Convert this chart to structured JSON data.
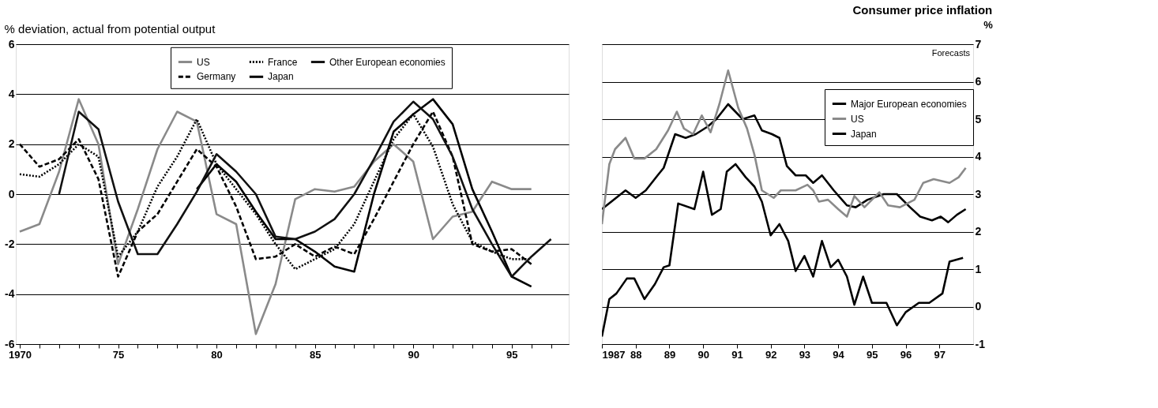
{
  "chart_data": [
    {
      "type": "line",
      "subtitle": "% deviation, actual from potential output",
      "legend": "top",
      "grid": "y",
      "xlim": [
        1969.8,
        1997.9
      ],
      "ylim": [
        -6,
        6
      ],
      "yticks": [
        6,
        4,
        2,
        0,
        -2,
        -4,
        -6
      ],
      "xticks": [
        {
          "value": 1970,
          "label": "1970"
        },
        {
          "value": 1971,
          "label": null
        },
        {
          "value": 1972,
          "label": null
        },
        {
          "value": 1973,
          "label": null
        },
        {
          "value": 1974,
          "label": null
        },
        {
          "value": 1975,
          "label": "75"
        },
        {
          "value": 1976,
          "label": null
        },
        {
          "value": 1977,
          "label": null
        },
        {
          "value": 1978,
          "label": null
        },
        {
          "value": 1979,
          "label": null
        },
        {
          "value": 1980,
          "label": "80"
        },
        {
          "value": 1981,
          "label": null
        },
        {
          "value": 1982,
          "label": null
        },
        {
          "value": 1983,
          "label": null
        },
        {
          "value": 1984,
          "label": null
        },
        {
          "value": 1985,
          "label": "85"
        },
        {
          "value": 1986,
          "label": null
        },
        {
          "value": 1987,
          "label": null
        },
        {
          "value": 1988,
          "label": null
        },
        {
          "value": 1989,
          "label": null
        },
        {
          "value": 1990,
          "label": "90"
        },
        {
          "value": 1991,
          "label": null
        },
        {
          "value": 1992,
          "label": null
        },
        {
          "value": 1993,
          "label": null
        },
        {
          "value": 1994,
          "label": null
        },
        {
          "value": 1995,
          "label": "95"
        },
        {
          "value": 1996,
          "label": null
        },
        {
          "value": 1997,
          "label": null
        }
      ],
      "series": [
        {
          "name": "US",
          "color": "#8a8a8a",
          "line_style": "solid",
          "x": [
            1970,
            1971,
            1972,
            1973,
            1974,
            1975,
            1976,
            1977,
            1978,
            1979,
            1980,
            1981,
            1982,
            1983,
            1984,
            1985,
            1986,
            1987,
            1988,
            1989,
            1990,
            1991,
            1992,
            1993,
            1994,
            1995,
            1996
          ],
          "values": [
            -1.5,
            -1.2,
            0.9,
            3.8,
            2.0,
            -2.8,
            -0.6,
            1.8,
            3.3,
            2.9,
            -0.8,
            -1.2,
            -5.6,
            -3.6,
            -0.2,
            0.2,
            0.1,
            0.3,
            1.3,
            2.0,
            1.3,
            -1.8,
            -0.9,
            -0.7,
            0.5,
            0.2,
            0.2
          ]
        },
        {
          "name": "Germany",
          "color": "#000000",
          "line_style": "dashed",
          "x": [
            1970,
            1971,
            1972,
            1973,
            1974,
            1975,
            1976,
            1977,
            1978,
            1979,
            1980,
            1981,
            1982,
            1983,
            1984,
            1985,
            1986,
            1987,
            1988,
            1989,
            1990,
            1991,
            1992,
            1993,
            1994,
            1995,
            1996
          ],
          "values": [
            2.0,
            1.1,
            1.4,
            2.2,
            0.6,
            -3.3,
            -1.5,
            -0.8,
            0.5,
            1.8,
            1.1,
            -0.5,
            -2.6,
            -2.5,
            -2.0,
            -2.5,
            -2.1,
            -2.4,
            -1.0,
            0.5,
            2.0,
            3.3,
            1.5,
            -2.0,
            -2.3,
            -2.2,
            -2.8
          ]
        },
        {
          "name": "France",
          "color": "#000000",
          "line_style": "dotted",
          "x": [
            1970,
            1971,
            1972,
            1973,
            1974,
            1975,
            1976,
            1977,
            1978,
            1979,
            1980,
            1981,
            1982,
            1983,
            1984,
            1985,
            1986,
            1987,
            1988,
            1989,
            1990,
            1991,
            1992,
            1993,
            1994,
            1995,
            1996
          ],
          "values": [
            0.8,
            0.7,
            1.2,
            2.0,
            1.5,
            -2.5,
            -1.5,
            0.3,
            1.5,
            3.0,
            1.2,
            0.2,
            -0.8,
            -2.0,
            -3.0,
            -2.6,
            -2.2,
            -1.2,
            0.5,
            2.2,
            3.2,
            1.9,
            -0.4,
            -1.9,
            -2.3,
            -2.6,
            -2.6
          ]
        },
        {
          "name": "Japan",
          "color": "#000000",
          "line_style": "solid",
          "x": [
            1979,
            1980,
            1981,
            1982,
            1983,
            1984,
            1985,
            1986,
            1987,
            1988,
            1989,
            1990,
            1991,
            1992,
            1993,
            1994,
            1995,
            1996
          ],
          "values": [
            0.2,
            1.2,
            0.5,
            -0.7,
            -1.8,
            -1.8,
            -2.3,
            -2.9,
            -3.1,
            0.0,
            2.5,
            3.2,
            3.8,
            2.8,
            0.2,
            -1.5,
            -3.3,
            -3.7
          ]
        },
        {
          "name": "Other European economies",
          "color": "#111111",
          "line_style": "solid",
          "x": [
            1972,
            1973,
            1974,
            1975,
            1976,
            1977,
            1978,
            1979,
            1980,
            1981,
            1982,
            1983,
            1984,
            1985,
            1986,
            1987,
            1988,
            1989,
            1990,
            1991,
            1992,
            1993,
            1994,
            1995,
            1996,
            1997
          ],
          "values": [
            0.0,
            3.3,
            2.6,
            -0.3,
            -2.4,
            -2.4,
            -1.2,
            0.1,
            1.6,
            0.9,
            0.0,
            -1.7,
            -1.8,
            -1.5,
            -1.0,
            0.0,
            1.4,
            2.9,
            3.7,
            3.0,
            1.5,
            -0.6,
            -2.0,
            -3.3,
            -2.5,
            -1.8
          ]
        }
      ]
    },
    {
      "type": "line",
      "title": "Consumer price inflation",
      "ylabel": "%",
      "legend": "top right",
      "grid": "y",
      "xlim": [
        1987,
        1998
      ],
      "ylim": [
        -1,
        7
      ],
      "yticks": [
        7,
        6,
        5,
        4,
        3,
        2,
        1,
        0,
        -1
      ],
      "xticks": [
        {
          "value": 1987,
          "label": "1987"
        },
        {
          "value": 1988,
          "label": "88"
        },
        {
          "value": 1989,
          "label": "89"
        },
        {
          "value": 1990,
          "label": "90"
        },
        {
          "value": 1991,
          "label": "91"
        },
        {
          "value": 1992,
          "label": "92"
        },
        {
          "value": 1993,
          "label": "93"
        },
        {
          "value": 1994,
          "label": "94"
        },
        {
          "value": 1995,
          "label": "95"
        },
        {
          "value": 1996,
          "label": "96"
        },
        {
          "value": 1997,
          "label": "97"
        }
      ],
      "annotations": [
        "Forecasts"
      ],
      "series": [
        {
          "name": "Major European economies",
          "color": "#000000",
          "line_style": "solid",
          "x": [
            1987,
            1987.7,
            1988.0,
            1988.3,
            1988.65,
            1988.83,
            1989.17,
            1989.48,
            1989.78,
            1990.13,
            1990.39,
            1990.74,
            1991.17,
            1991.52,
            1991.74,
            1992.04,
            1992.26,
            1992.48,
            1992.74,
            1993.04,
            1993.26,
            1993.52,
            1993.87,
            1994.26,
            1994.52,
            1994.87,
            1995.35,
            1995.74,
            1996.13,
            1996.43,
            1996.78,
            1997.04,
            1997.26,
            1997.52,
            1997.78
          ],
          "values": [
            2.6,
            3.1,
            2.9,
            3.1,
            3.5,
            3.7,
            4.6,
            4.5,
            4.6,
            4.8,
            5.0,
            5.4,
            5.0,
            5.1,
            4.7,
            4.6,
            4.5,
            3.75,
            3.5,
            3.5,
            3.3,
            3.5,
            3.1,
            2.7,
            2.65,
            2.85,
            3.0,
            3.0,
            2.65,
            2.4,
            2.3,
            2.4,
            2.25,
            2.45,
            2.6
          ]
        },
        {
          "name": "US",
          "color": "#8a8a8a",
          "line_style": "solid",
          "x": [
            1987,
            1987.22,
            1987.39,
            1987.7,
            1987.96,
            1988.26,
            1988.61,
            1988.96,
            1989.22,
            1989.43,
            1989.7,
            1989.96,
            1990.22,
            1990.48,
            1990.74,
            1991.04,
            1991.3,
            1991.52,
            1991.74,
            1992.09,
            1992.3,
            1992.74,
            1993.09,
            1993.26,
            1993.43,
            1993.7,
            1994.0,
            1994.26,
            1994.48,
            1994.78,
            1995.22,
            1995.48,
            1995.83,
            1996.26,
            1996.52,
            1996.83,
            1997.3,
            1997.57,
            1997.78
          ],
          "values": [
            2.2,
            3.8,
            4.2,
            4.5,
            3.95,
            3.95,
            4.2,
            4.7,
            5.2,
            4.75,
            4.6,
            5.1,
            4.65,
            5.4,
            6.3,
            5.3,
            4.75,
            4.05,
            3.1,
            2.9,
            3.1,
            3.1,
            3.25,
            3.1,
            2.8,
            2.85,
            2.6,
            2.4,
            2.95,
            2.65,
            3.05,
            2.7,
            2.65,
            2.85,
            3.3,
            3.4,
            3.3,
            3.45,
            3.7
          ]
        },
        {
          "name": "Japan",
          "color": "#000000",
          "line_style": "solid",
          "x": [
            1987,
            1987.22,
            1987.43,
            1987.74,
            1987.96,
            1988.26,
            1988.57,
            1988.83,
            1989.0,
            1989.26,
            1989.74,
            1990.0,
            1990.26,
            1990.52,
            1990.7,
            1990.96,
            1991.26,
            1991.52,
            1991.74,
            1992.0,
            1992.26,
            1992.52,
            1992.74,
            1993.0,
            1993.26,
            1993.52,
            1993.78,
            1994.0,
            1994.26,
            1994.48,
            1994.74,
            1995.0,
            1995.43,
            1995.74,
            1996.0,
            1996.39,
            1996.7,
            1997.09,
            1997.3,
            1997.7
          ],
          "values": [
            -0.8,
            0.2,
            0.35,
            0.75,
            0.75,
            0.2,
            0.6,
            1.05,
            1.1,
            2.75,
            2.6,
            3.6,
            2.45,
            2.6,
            3.6,
            3.8,
            3.45,
            3.2,
            2.8,
            1.9,
            2.2,
            1.75,
            0.95,
            1.35,
            0.8,
            1.75,
            1.05,
            1.25,
            0.8,
            0.05,
            0.8,
            0.1,
            0.1,
            -0.5,
            -0.15,
            0.1,
            0.1,
            0.35,
            1.2,
            1.3
          ]
        }
      ]
    }
  ]
}
